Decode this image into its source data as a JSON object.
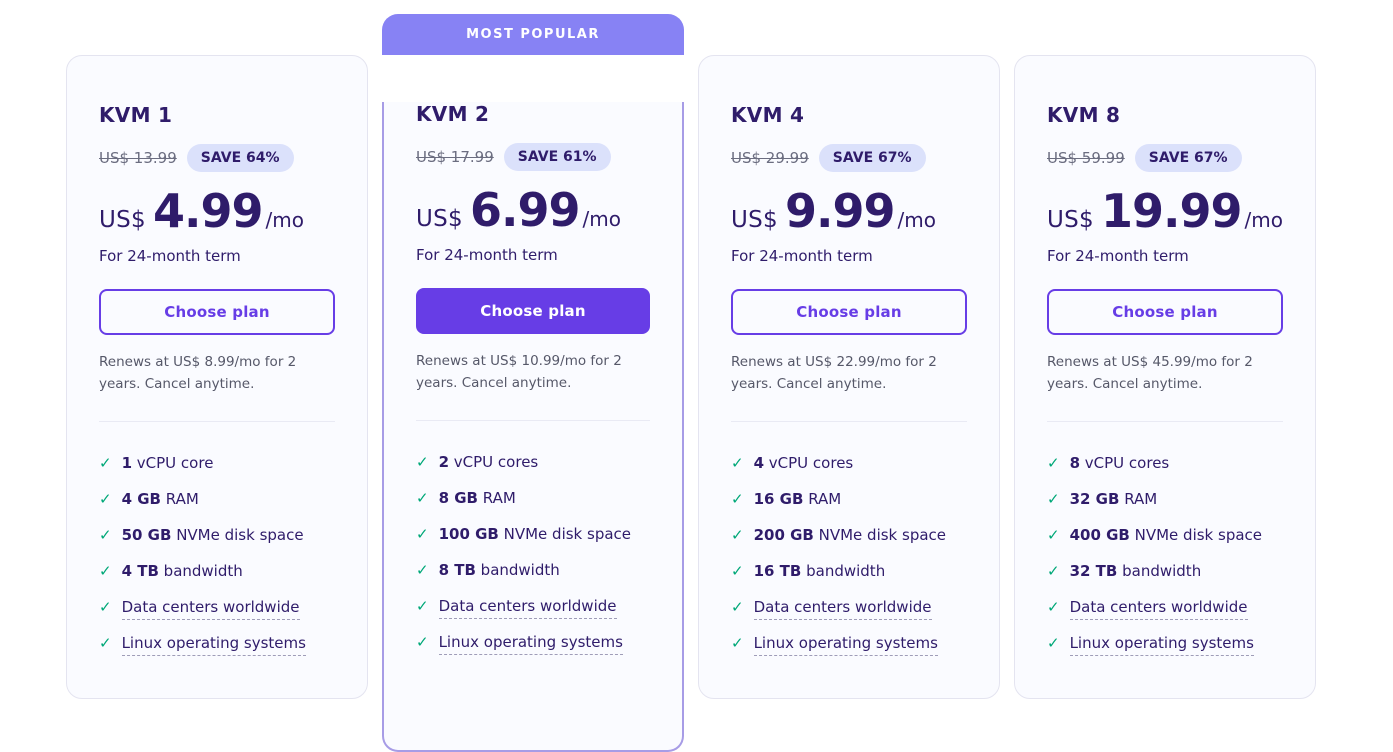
{
  "banner": {
    "most_popular_label": "MOST POPULAR"
  },
  "colors": {
    "accent_purple": "#673de6",
    "banner_purple": "#8782f4",
    "dark_purple": "#2f1c6a",
    "badge_bg": "#dbe1fb",
    "check_green": "#00a878",
    "card_bg": "#fafbff",
    "card_border": "#e4e4f0",
    "popular_border": "#a79ce6",
    "muted_gray": "#6b6d80",
    "renewal_text": "#565869",
    "divider": "#e9eaf4",
    "dashed_underline": "#9f9db8"
  },
  "plans": [
    {
      "name": "KVM 1",
      "old_price": "US$ 13.99",
      "save_badge": "SAVE 64%",
      "currency": "US$",
      "price": "4.99",
      "per": "/mo",
      "term": "For 24-month term",
      "cta": "Choose plan",
      "cta_style": "outline",
      "most_popular": false,
      "renewal": "Renews at US$ 8.99/mo for 2 years. Cancel anytime.",
      "features": [
        {
          "bold": "1",
          "text": " vCPU core",
          "underline": false
        },
        {
          "bold": "4 GB",
          "text": " RAM",
          "underline": false
        },
        {
          "bold": "50 GB",
          "text": " NVMe disk space",
          "underline": false
        },
        {
          "bold": "4 TB",
          "text": " bandwidth",
          "underline": false
        },
        {
          "bold": "",
          "text": "Data centers worldwide",
          "underline": true
        },
        {
          "bold": "",
          "text": "Linux operating systems",
          "underline": true
        }
      ]
    },
    {
      "name": "KVM 2",
      "old_price": "US$ 17.99",
      "save_badge": "SAVE 61%",
      "currency": "US$",
      "price": "6.99",
      "per": "/mo",
      "term": "For 24-month term",
      "cta": "Choose plan",
      "cta_style": "filled",
      "most_popular": true,
      "renewal": "Renews at US$ 10.99/mo for 2 years. Cancel anytime.",
      "features": [
        {
          "bold": "2",
          "text": " vCPU cores",
          "underline": false
        },
        {
          "bold": "8 GB",
          "text": " RAM",
          "underline": false
        },
        {
          "bold": "100 GB",
          "text": " NVMe disk space",
          "underline": false
        },
        {
          "bold": "8 TB",
          "text": " bandwidth",
          "underline": false
        },
        {
          "bold": "",
          "text": "Data centers worldwide",
          "underline": true
        },
        {
          "bold": "",
          "text": "Linux operating systems",
          "underline": true
        }
      ]
    },
    {
      "name": "KVM 4",
      "old_price": "US$ 29.99",
      "save_badge": "SAVE 67%",
      "currency": "US$",
      "price": "9.99",
      "per": "/mo",
      "term": "For 24-month term",
      "cta": "Choose plan",
      "cta_style": "outline",
      "most_popular": false,
      "renewal": "Renews at US$ 22.99/mo for 2 years. Cancel anytime.",
      "features": [
        {
          "bold": "4",
          "text": " vCPU cores",
          "underline": false
        },
        {
          "bold": "16 GB",
          "text": " RAM",
          "underline": false
        },
        {
          "bold": "200 GB",
          "text": " NVMe disk space",
          "underline": false
        },
        {
          "bold": "16 TB",
          "text": " bandwidth",
          "underline": false
        },
        {
          "bold": "",
          "text": "Data centers worldwide",
          "underline": true
        },
        {
          "bold": "",
          "text": "Linux operating systems",
          "underline": true
        }
      ]
    },
    {
      "name": "KVM 8",
      "old_price": "US$ 59.99",
      "save_badge": "SAVE 67%",
      "currency": "US$",
      "price": "19.99",
      "per": "/mo",
      "term": "For 24-month term",
      "cta": "Choose plan",
      "cta_style": "outline",
      "most_popular": false,
      "renewal": "Renews at US$ 45.99/mo for 2 years. Cancel anytime.",
      "features": [
        {
          "bold": "8",
          "text": " vCPU cores",
          "underline": false
        },
        {
          "bold": "32 GB",
          "text": " RAM",
          "underline": false
        },
        {
          "bold": "400 GB",
          "text": " NVMe disk space",
          "underline": false
        },
        {
          "bold": "32 TB",
          "text": " bandwidth",
          "underline": false
        },
        {
          "bold": "",
          "text": "Data centers worldwide",
          "underline": true
        },
        {
          "bold": "",
          "text": "Linux operating systems",
          "underline": true
        }
      ]
    }
  ]
}
